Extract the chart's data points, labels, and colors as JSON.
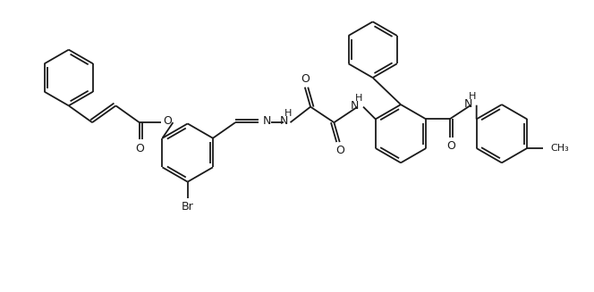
{
  "background_color": "#ffffff",
  "line_color": "#1a1a1a",
  "line_width": 1.3,
  "font_size": 9,
  "fig_width": 6.64,
  "fig_height": 3.27,
  "xlim": [
    0,
    10.5
  ],
  "ylim": [
    0,
    5.0
  ]
}
